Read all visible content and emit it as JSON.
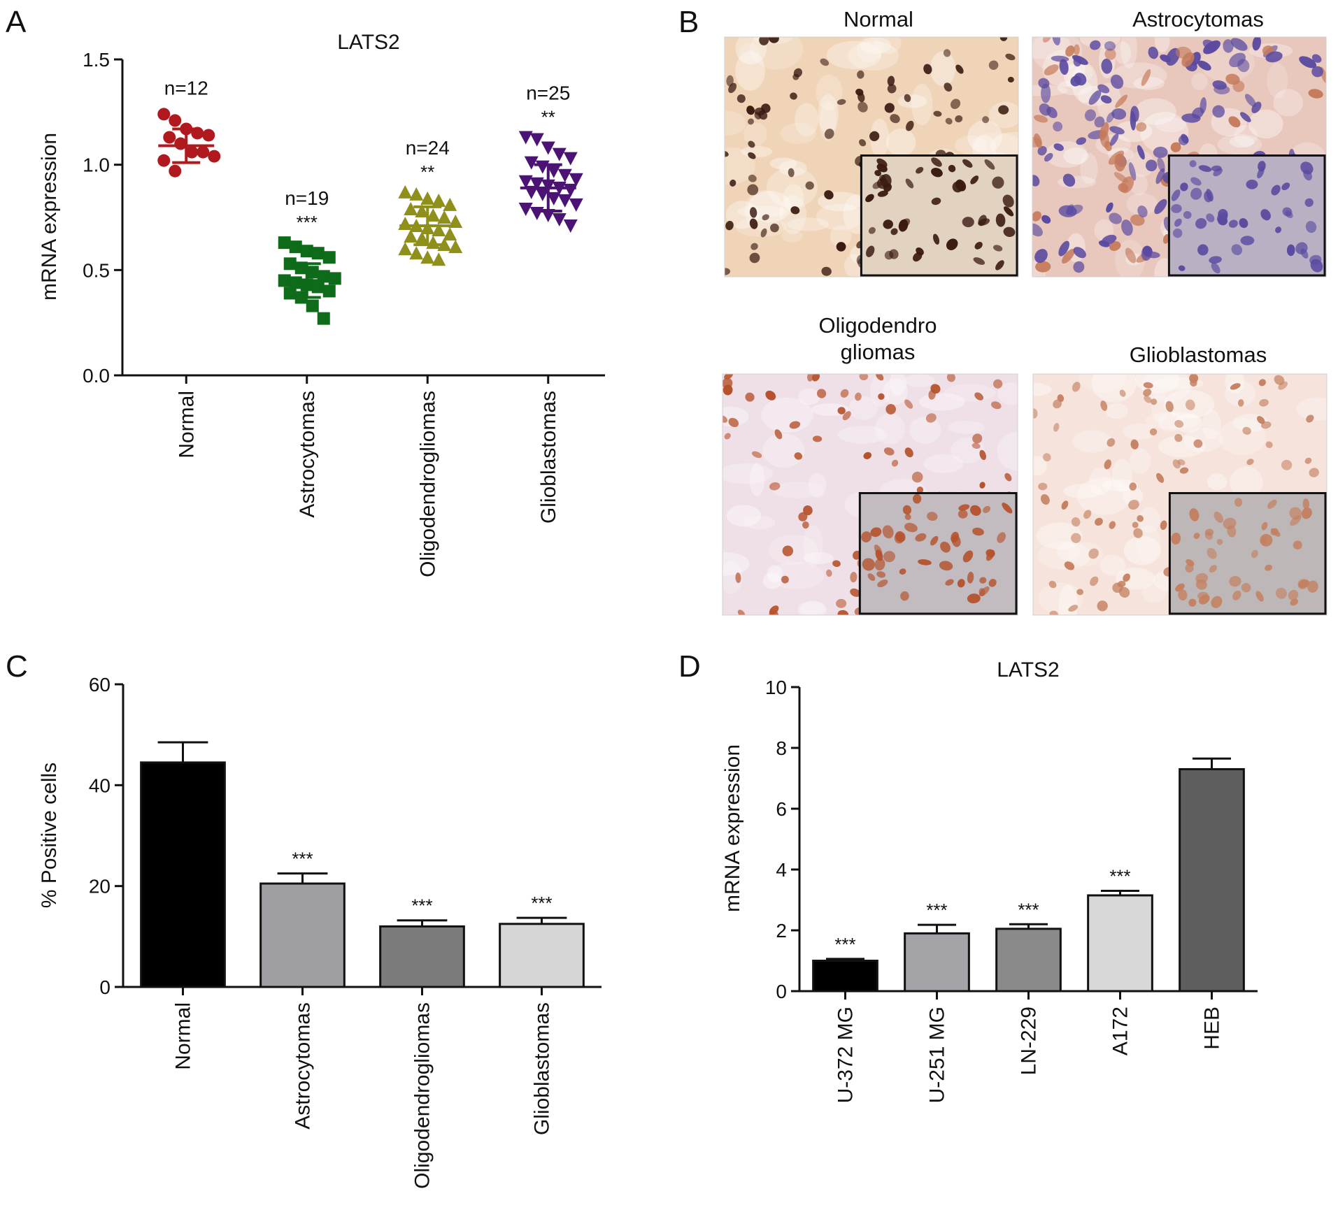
{
  "panels": {
    "A": {
      "letter": "A"
    },
    "B": {
      "letter": "B"
    },
    "C": {
      "letter": "C"
    },
    "D": {
      "letter": "D"
    }
  },
  "micrographs": [
    {
      "title": "Normal",
      "tone": "#f0d4b8",
      "cell": "#3a1a10",
      "inset_tone": "#e2d2c0"
    },
    {
      "title": "Astrocytomas",
      "tone": "#e8c7bd",
      "cell": "#5a4aa0",
      "inset_tone": "#b9b0c4"
    },
    {
      "title": "Oligodendro\ngliomas",
      "tone": "#efe0e8",
      "cell": "#b5522c",
      "inset_tone": "#c2bcc0"
    },
    {
      "title": "Glioblastomas",
      "tone": "#f6e4dc",
      "cell": "#c48060",
      "inset_tone": "#bdb7b8"
    }
  ],
  "chart_data": [
    {
      "panel": "A",
      "type": "scatter",
      "title": "LATS2",
      "ylabel": "mRNA expression",
      "ylim": [
        0,
        1.5
      ],
      "yticks": [
        "0.0",
        "0.5",
        "1.0",
        "1.5"
      ],
      "categories": [
        "Normal",
        "Astrocytomas",
        "Oligodendrogliomas",
        "Glioblastomas"
      ],
      "series": [
        {
          "category": "Normal",
          "n_label": "n=12",
          "sig": "",
          "color": "#b0191e",
          "marker": "circle",
          "mean": 1.09,
          "sd": 0.08,
          "values": [
            1.24,
            1.21,
            1.17,
            1.15,
            1.14,
            1.13,
            1.1,
            1.06,
            1.06,
            1.04,
            1.02,
            0.97
          ]
        },
        {
          "category": "Astrocytomas",
          "n_label": "n=19",
          "sig": "***",
          "color": "#0e6b1a",
          "marker": "square",
          "mean": 0.45,
          "sd": 0.08,
          "values": [
            0.63,
            0.61,
            0.59,
            0.58,
            0.56,
            0.53,
            0.51,
            0.49,
            0.47,
            0.46,
            0.45,
            0.44,
            0.43,
            0.42,
            0.4,
            0.39,
            0.37,
            0.33,
            0.27
          ]
        },
        {
          "category": "Oligodendrogliomas",
          "n_label": "n=24",
          "sig": "**",
          "color": "#8f8f1c",
          "marker": "triangle-up",
          "mean": 0.71,
          "sd": 0.09,
          "values": [
            0.87,
            0.86,
            0.84,
            0.83,
            0.81,
            0.79,
            0.78,
            0.76,
            0.75,
            0.73,
            0.72,
            0.71,
            0.7,
            0.69,
            0.67,
            0.66,
            0.65,
            0.63,
            0.62,
            0.61,
            0.6,
            0.58,
            0.56,
            0.55
          ]
        },
        {
          "category": "Glioblastomas",
          "n_label": "n=25",
          "sig": "**",
          "color": "#4b1373",
          "marker": "triangle-down",
          "mean": 0.89,
          "sd": 0.11,
          "values": [
            1.13,
            1.12,
            1.08,
            1.05,
            1.03,
            1.01,
            0.99,
            0.97,
            0.95,
            0.93,
            0.92,
            0.91,
            0.9,
            0.89,
            0.88,
            0.87,
            0.86,
            0.84,
            0.83,
            0.81,
            0.79,
            0.77,
            0.76,
            0.74,
            0.71
          ]
        }
      ]
    },
    {
      "panel": "C",
      "type": "bar",
      "title": "",
      "ylabel": "% Positive cells",
      "ylim": [
        0,
        60
      ],
      "yticks": [
        "0",
        "20",
        "40",
        "60"
      ],
      "categories": [
        "Normal",
        "Astrocytomas",
        "Oligodendrogliomas",
        "Glioblastomas"
      ],
      "values": [
        44.5,
        20.5,
        12,
        12.5
      ],
      "errors": [
        4,
        2,
        1.2,
        1.2
      ],
      "sig": [
        "",
        "***",
        "***",
        "***"
      ],
      "colors": [
        "#000000",
        "#9e9ea3",
        "#7b7b7b",
        "#d6d6d6"
      ]
    },
    {
      "panel": "D",
      "type": "bar",
      "title": "LATS2",
      "ylabel": "mRNA expression",
      "ylim": [
        0,
        10
      ],
      "yticks": [
        "0",
        "2",
        "4",
        "6",
        "8",
        "10"
      ],
      "categories": [
        "U-372 MG",
        "U-251 MG",
        "LN-229",
        "A172",
        "HEB"
      ],
      "values": [
        1.0,
        1.9,
        2.05,
        3.15,
        7.3
      ],
      "errors": [
        0.06,
        0.28,
        0.15,
        0.15,
        0.35
      ],
      "sig": [
        "***",
        "***",
        "***",
        "***",
        ""
      ],
      "colors": [
        "#000000",
        "#a3a3a8",
        "#8a8a8a",
        "#d8d8d8",
        "#5e5e5e"
      ]
    }
  ]
}
